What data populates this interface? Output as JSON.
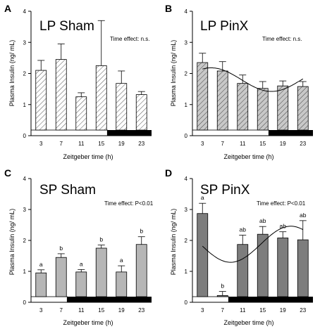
{
  "chart_data": [
    {
      "type": "bar",
      "panel_label": "A",
      "title": "LP Sham",
      "annotation": "Time effect: n.s.",
      "xlabel": "Zeitgeber time (h)",
      "ylabel": "Plasma Insulin (ng/ mL)",
      "categories": [
        "3",
        "7",
        "11",
        "15",
        "19",
        "23"
      ],
      "values": [
        2.1,
        2.45,
        1.25,
        2.25,
        1.68,
        1.32
      ],
      "errors": [
        0.32,
        0.5,
        0.13,
        1.45,
        0.4,
        0.1
      ],
      "ylim": [
        0,
        4
      ],
      "yticks": [
        "0",
        "1",
        "2",
        "3",
        "4"
      ],
      "bar_style": "hatched-white",
      "dark_phase_start_category": "19",
      "sig_letters": [],
      "fit_curve": false
    },
    {
      "type": "bar",
      "panel_label": "B",
      "title": "LP PinX",
      "annotation": "Time effect: n.s.",
      "xlabel": "Zeitgeber time (h)",
      "ylabel": "Plasma Insulin (ng/ mL)",
      "categories": [
        "3",
        "7",
        "11",
        "15",
        "19",
        "23"
      ],
      "values": [
        2.35,
        2.08,
        1.68,
        1.52,
        1.6,
        1.58
      ],
      "errors": [
        0.3,
        0.3,
        0.27,
        0.22,
        0.16,
        0.16
      ],
      "ylim": [
        0,
        4
      ],
      "yticks": [
        "0",
        "1",
        "2",
        "3",
        "4"
      ],
      "bar_style": "hatched-grey",
      "dark_phase_start_category": "19",
      "sig_letters": [],
      "fit_curve": true
    },
    {
      "type": "bar",
      "panel_label": "C",
      "title": "SP Sham",
      "annotation": "Time effect: P<0.01",
      "xlabel": "Zeitgeber time (h)",
      "ylabel": "Plasma Insulin (ng/ mL)",
      "categories": [
        "3",
        "7",
        "11",
        "15",
        "19",
        "23"
      ],
      "values": [
        0.95,
        1.45,
        0.98,
        1.75,
        0.98,
        1.87
      ],
      "errors": [
        0.1,
        0.12,
        0.08,
        0.1,
        0.2,
        0.25
      ],
      "ylim": [
        0,
        4
      ],
      "yticks": [
        "0",
        "1",
        "2",
        "3",
        "4"
      ],
      "bar_style": "solid-light",
      "dark_phase_start_category": "11",
      "sig_letters": [
        "a",
        "b",
        "a",
        "b",
        "a",
        "b"
      ],
      "fit_curve": false
    },
    {
      "type": "bar",
      "panel_label": "D",
      "title": "SP PinX",
      "annotation": "Time effect: P<0.01",
      "xlabel": "Zeitgeber time (h)",
      "ylabel": "Plasma Insulin (ng/ mL)",
      "categories": [
        "3",
        "7",
        "11",
        "15",
        "19",
        "23"
      ],
      "values": [
        2.87,
        0.22,
        1.87,
        2.2,
        2.08,
        2.02
      ],
      "errors": [
        0.33,
        0.13,
        0.3,
        0.25,
        0.2,
        0.62
      ],
      "ylim": [
        0,
        4
      ],
      "yticks": [
        "0",
        "1",
        "2",
        "3",
        "4"
      ],
      "bar_style": "solid-dark",
      "dark_phase_start_category": "11",
      "sig_letters": [
        "a",
        "b",
        "ab",
        "ab",
        "ab",
        "ab"
      ],
      "fit_curve": true
    }
  ]
}
